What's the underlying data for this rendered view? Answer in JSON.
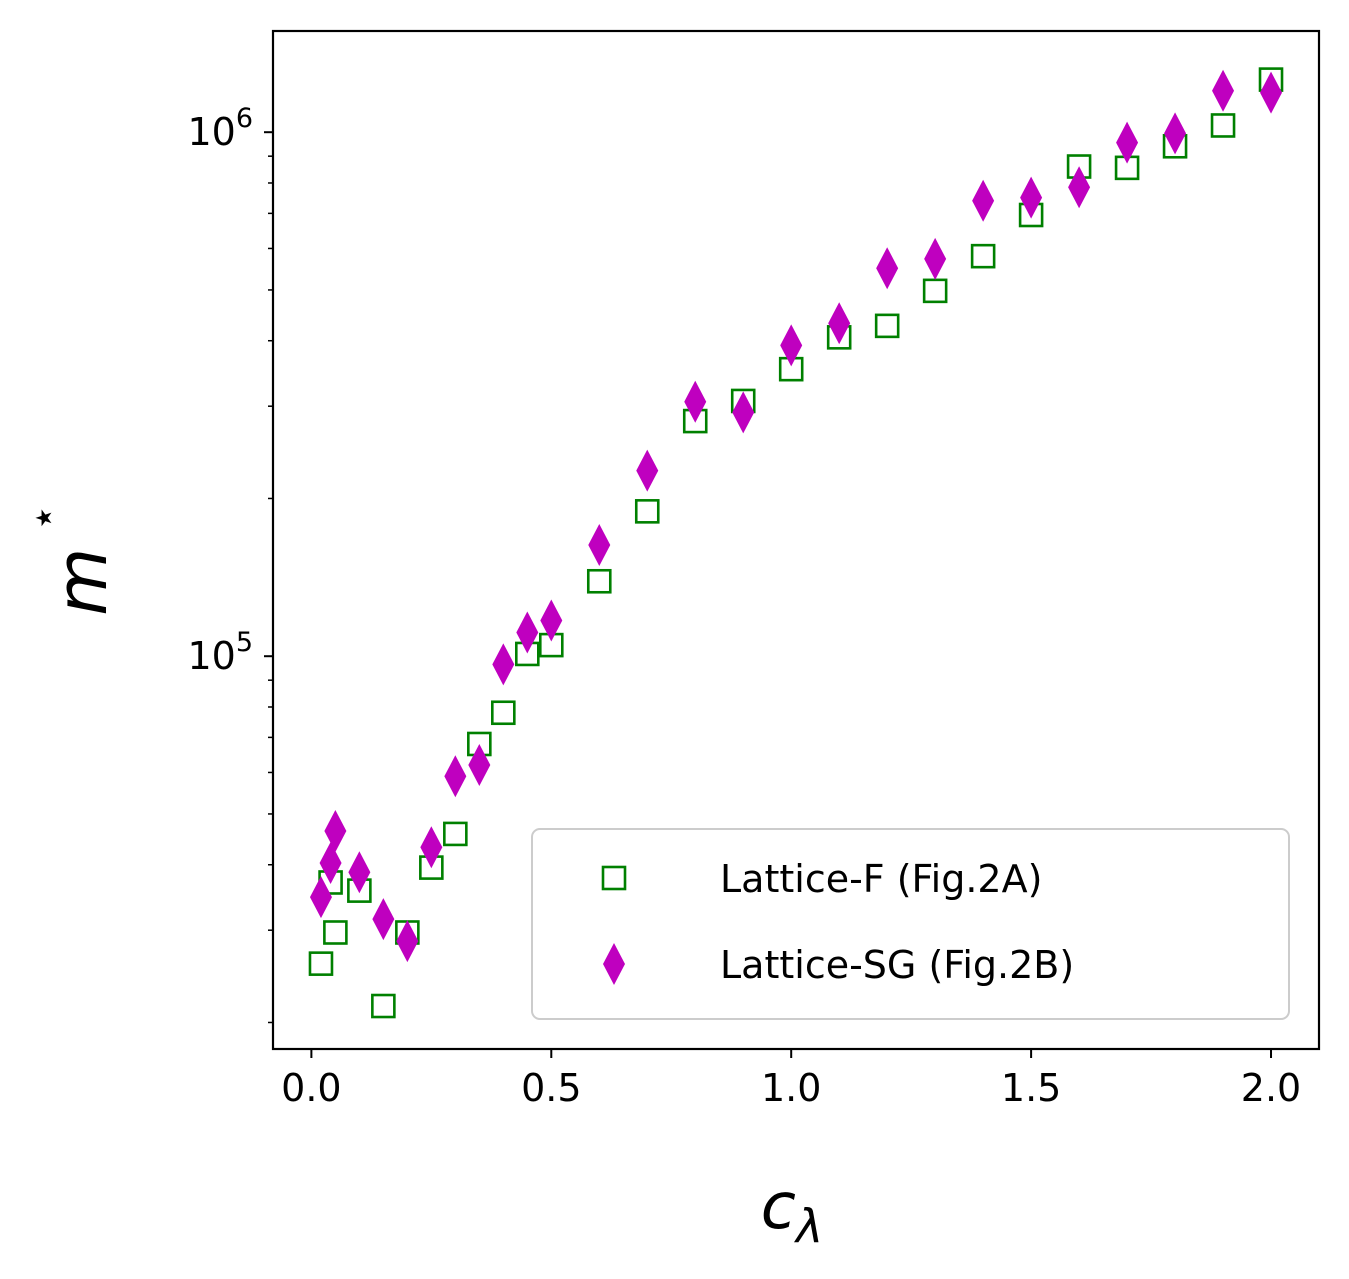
{
  "chart_data": {
    "type": "scatter",
    "title": "",
    "xlabel": "c",
    "xlabel_subscript": "λ",
    "ylabel": "m",
    "ylabel_superscript": "⋆",
    "xlim": [
      -0.08,
      2.1
    ],
    "ylim": [
      17800,
      1560000
    ],
    "yscale": "log",
    "grid": false,
    "legend_position": "bottom-right",
    "x_ticks": [
      {
        "value": 0.0,
        "label": "0.0"
      },
      {
        "value": 0.5,
        "label": "0.5"
      },
      {
        "value": 1.0,
        "label": "1.0"
      },
      {
        "value": 1.5,
        "label": "1.5"
      },
      {
        "value": 2.0,
        "label": "2.0"
      }
    ],
    "y_ticks": [
      {
        "value": 100000,
        "base": "10",
        "exp": "5"
      },
      {
        "value": 1000000,
        "base": "10",
        "exp": "6"
      }
    ],
    "series": [
      {
        "name": "Lattice-F (Fig.2A)",
        "marker": "square-open",
        "color": "#008000",
        "x": [
          0.02,
          0.04,
          0.05,
          0.1,
          0.15,
          0.2,
          0.25,
          0.3,
          0.35,
          0.4,
          0.45,
          0.5,
          0.6,
          0.7,
          0.8,
          0.9,
          1.0,
          1.1,
          1.2,
          1.3,
          1.4,
          1.5,
          1.6,
          1.7,
          1.8,
          1.9,
          2.0
        ],
        "y": [
          25900,
          37000,
          29700,
          35700,
          21500,
          29700,
          39500,
          45800,
          68000,
          78000,
          101000,
          105000,
          139000,
          189000,
          281000,
          307000,
          353000,
          406000,
          427000,
          498000,
          580000,
          695000,
          860000,
          855000,
          940000,
          1030000,
          1260000
        ]
      },
      {
        "name": "Lattice-SG (Fig.2B)",
        "marker": "thin-diamond",
        "color": "#bf00bf",
        "x": [
          0.02,
          0.04,
          0.05,
          0.1,
          0.15,
          0.2,
          0.25,
          0.3,
          0.35,
          0.4,
          0.45,
          0.5,
          0.6,
          0.7,
          0.8,
          0.9,
          1.0,
          1.1,
          1.2,
          1.3,
          1.4,
          1.5,
          1.6,
          1.7,
          1.8,
          1.9,
          2.0
        ],
        "y": [
          34700,
          40300,
          46400,
          38700,
          31500,
          28600,
          43200,
          59000,
          62000,
          96500,
          111000,
          117000,
          163000,
          226000,
          306000,
          292000,
          392000,
          432000,
          550000,
          573000,
          740000,
          750000,
          785000,
          955000,
          995000,
          1200000,
          1190000
        ]
      }
    ]
  }
}
